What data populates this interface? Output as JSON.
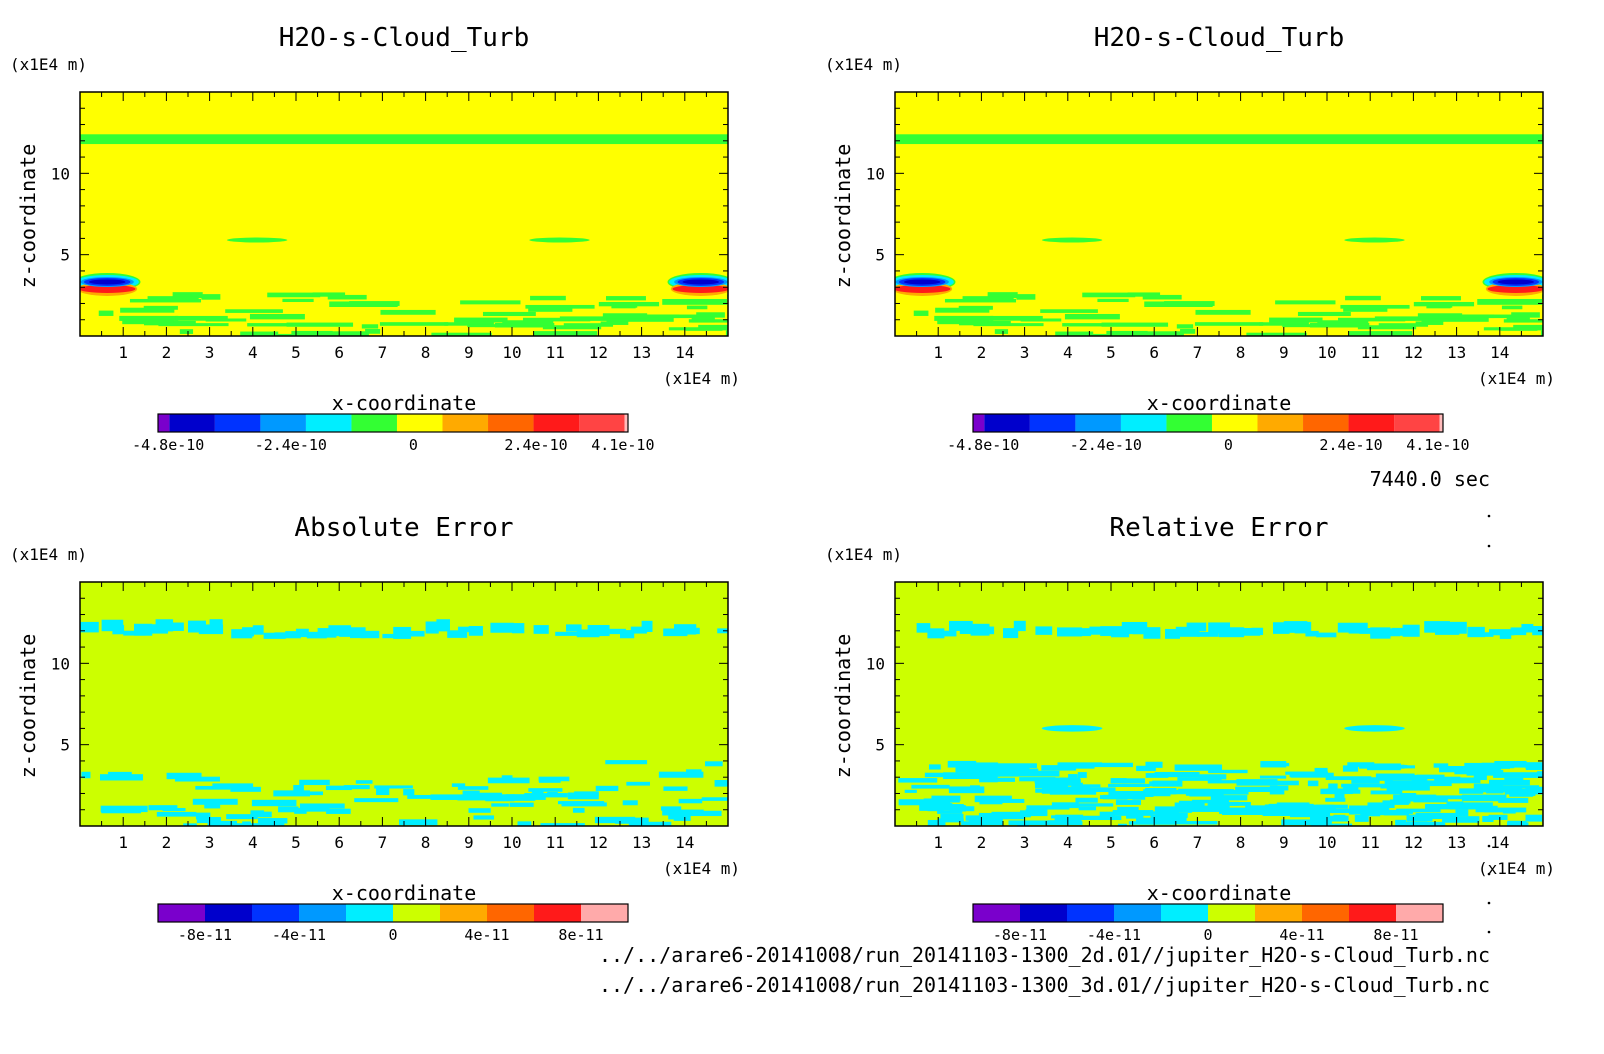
{
  "timestamp": "7440.0 sec",
  "footer": {
    "line1": "../../arare6-20141008/run_20141103-1300_2d.01//jupiter_H2O-s-Cloud_Turb.nc",
    "line2": "../../arare6-20141008/run_20141103-1300_3d.01//jupiter_H2O-s-Cloud_Turb.nc"
  },
  "chart_data": [
    {
      "type": "heatmap",
      "title": "H2O-s-Cloud_Turb",
      "xlabel": "x-coordinate",
      "ylabel": "z-coordinate",
      "x_unit": "(x1E4 m)",
      "y_unit": "(x1E4 m)",
      "xlim": [
        0,
        15
      ],
      "ylim": [
        0,
        15
      ],
      "x_ticks": [
        1,
        2,
        3,
        4,
        5,
        6,
        7,
        8,
        9,
        10,
        11,
        12,
        13,
        14
      ],
      "y_ticks": [
        5,
        10
      ],
      "background_color": "#ffff00",
      "features": [
        {
          "kind": "band",
          "z": [
            11.8,
            12.4
          ],
          "color": "#33ff33"
        },
        {
          "kind": "blob",
          "x": [
            3.4,
            4.8
          ],
          "z": [
            5.8,
            6.0
          ],
          "color": "#33ff33"
        },
        {
          "kind": "blob",
          "x": [
            10.4,
            11.8
          ],
          "z": [
            5.8,
            6.0
          ],
          "color": "#33ff33"
        },
        {
          "kind": "eddy",
          "x": [
            0.0,
            1.4
          ],
          "z": [
            2.6,
            3.8
          ],
          "side": "left"
        },
        {
          "kind": "eddy",
          "x": [
            13.6,
            15.0
          ],
          "z": [
            2.6,
            3.8
          ],
          "side": "right"
        },
        {
          "kind": "speckle",
          "z": [
            0.0,
            2.6
          ],
          "color": "#33ff33"
        }
      ],
      "colorbar": {
        "colors": [
          "#7a00cc",
          "#0000cc",
          "#0033ff",
          "#0099ff",
          "#00eeff",
          "#33ff33",
          "#ffff00",
          "#ffaa00",
          "#ff6600",
          "#ff1a1a",
          "#ff4444",
          "#ffbbbb"
        ],
        "widths": [
          1,
          4,
          4,
          4,
          4,
          4,
          4,
          4,
          4,
          4,
          4,
          0.3
        ],
        "labels": [
          "-4.8e-10",
          "-2.4e-10",
          "0",
          "2.4e-10",
          "4.1e-10"
        ],
        "label_values": [
          -4.8e-10,
          -2.4e-10,
          0,
          2.4e-10,
          4.1e-10
        ],
        "range": [
          -5e-10,
          4.2e-10
        ]
      }
    },
    {
      "type": "heatmap",
      "title": "H2O-s-Cloud_Turb",
      "xlabel": "x-coordinate",
      "ylabel": "z-coordinate",
      "x_unit": "(x1E4 m)",
      "y_unit": "(x1E4 m)",
      "xlim": [
        0,
        15
      ],
      "ylim": [
        0,
        15
      ],
      "x_ticks": [
        1,
        2,
        3,
        4,
        5,
        6,
        7,
        8,
        9,
        10,
        11,
        12,
        13,
        14
      ],
      "y_ticks": [
        5,
        10
      ],
      "background_color": "#ffff00",
      "features": [
        {
          "kind": "band",
          "z": [
            11.8,
            12.4
          ],
          "color": "#33ff33"
        },
        {
          "kind": "blob",
          "x": [
            3.4,
            4.8
          ],
          "z": [
            5.8,
            6.0
          ],
          "color": "#33ff33"
        },
        {
          "kind": "blob",
          "x": [
            10.4,
            11.8
          ],
          "z": [
            5.8,
            6.0
          ],
          "color": "#33ff33"
        },
        {
          "kind": "eddy",
          "x": [
            0.0,
            1.4
          ],
          "z": [
            2.6,
            3.8
          ],
          "side": "left"
        },
        {
          "kind": "eddy",
          "x": [
            13.6,
            15.0
          ],
          "z": [
            2.6,
            3.8
          ],
          "side": "right"
        },
        {
          "kind": "speckle",
          "z": [
            0.0,
            2.6
          ],
          "color": "#33ff33"
        }
      ],
      "colorbar": {
        "colors": [
          "#7a00cc",
          "#0000cc",
          "#0033ff",
          "#0099ff",
          "#00eeff",
          "#33ff33",
          "#ffff00",
          "#ffaa00",
          "#ff6600",
          "#ff1a1a",
          "#ff4444",
          "#ffbbbb"
        ],
        "widths": [
          1,
          4,
          4,
          4,
          4,
          4,
          4,
          4,
          4,
          4,
          4,
          0.3
        ],
        "labels": [
          "-4.8e-10",
          "-2.4e-10",
          "0",
          "2.4e-10",
          "4.1e-10"
        ],
        "label_values": [
          -4.8e-10,
          -2.4e-10,
          0,
          2.4e-10,
          4.1e-10
        ],
        "range": [
          -5e-10,
          4.2e-10
        ]
      }
    },
    {
      "type": "heatmap",
      "title": "Absolute Error",
      "xlabel": "x-coordinate",
      "ylabel": "z-coordinate",
      "x_unit": "(x1E4 m)",
      "y_unit": "(x1E4 m)",
      "xlim": [
        0,
        15
      ],
      "ylim": [
        0,
        15
      ],
      "x_ticks": [
        1,
        2,
        3,
        4,
        5,
        6,
        7,
        8,
        9,
        10,
        11,
        12,
        13,
        14
      ],
      "y_ticks": [
        5,
        10
      ],
      "background_color": "#ccff00",
      "features": [
        {
          "kind": "band_ragged",
          "z": [
            11.5,
            12.6
          ],
          "color": "#00eeff"
        },
        {
          "kind": "speckle_low",
          "z": [
            0.0,
            4.0
          ],
          "color": "#00eeff",
          "pattern": "absolute"
        }
      ],
      "colorbar": {
        "colors": [
          "#7a00cc",
          "#0000cc",
          "#0033ff",
          "#0099ff",
          "#00eeff",
          "#ccff00",
          "#ffaa00",
          "#ff6600",
          "#ff1a1a",
          "#ffaaaa"
        ],
        "widths": [
          1,
          1,
          1,
          1,
          1,
          1,
          1,
          1,
          1,
          1
        ],
        "labels": [
          "-8e-11",
          "-4e-11",
          "0",
          "4e-11",
          "8e-11"
        ],
        "label_values": [
          -8e-11,
          -4e-11,
          0,
          4e-11,
          8e-11
        ],
        "range": [
          -1e-10,
          1e-10
        ]
      }
    },
    {
      "type": "heatmap",
      "title": "Relative Error",
      "xlabel": "x-coordinate",
      "ylabel": "z-coordinate",
      "x_unit": "(x1E4 m)",
      "y_unit": "(x1E4 m)",
      "xlim": [
        0,
        15
      ],
      "ylim": [
        0,
        15
      ],
      "x_ticks": [
        1,
        2,
        3,
        4,
        5,
        6,
        7,
        8,
        9,
        10,
        11,
        12,
        13,
        14
      ],
      "y_ticks": [
        5,
        10
      ],
      "background_color": "#ccff00",
      "features": [
        {
          "kind": "band_ragged",
          "z": [
            11.5,
            12.6
          ],
          "color": "#00eeff"
        },
        {
          "kind": "blob",
          "x": [
            3.4,
            4.8
          ],
          "z": [
            5.8,
            6.2
          ],
          "color": "#00eeff"
        },
        {
          "kind": "blob",
          "x": [
            10.4,
            11.8
          ],
          "z": [
            5.8,
            6.2
          ],
          "color": "#00eeff"
        },
        {
          "kind": "speckle_low",
          "z": [
            0.0,
            4.0
          ],
          "color": "#00eeff",
          "pattern": "relative"
        }
      ],
      "colorbar": {
        "colors": [
          "#7a00cc",
          "#0000cc",
          "#0033ff",
          "#0099ff",
          "#00eeff",
          "#ccff00",
          "#ffaa00",
          "#ff6600",
          "#ff1a1a",
          "#ffaaaa"
        ],
        "widths": [
          1,
          1,
          1,
          1,
          1,
          1,
          1,
          1,
          1,
          1
        ],
        "labels": [
          "-8e-11",
          "-4e-11",
          "0",
          "4e-11",
          "8e-11"
        ],
        "label_values": [
          -8e-11,
          -4e-11,
          0,
          4e-11,
          8e-11
        ],
        "range": [
          -1e-10,
          1e-10
        ]
      }
    }
  ]
}
